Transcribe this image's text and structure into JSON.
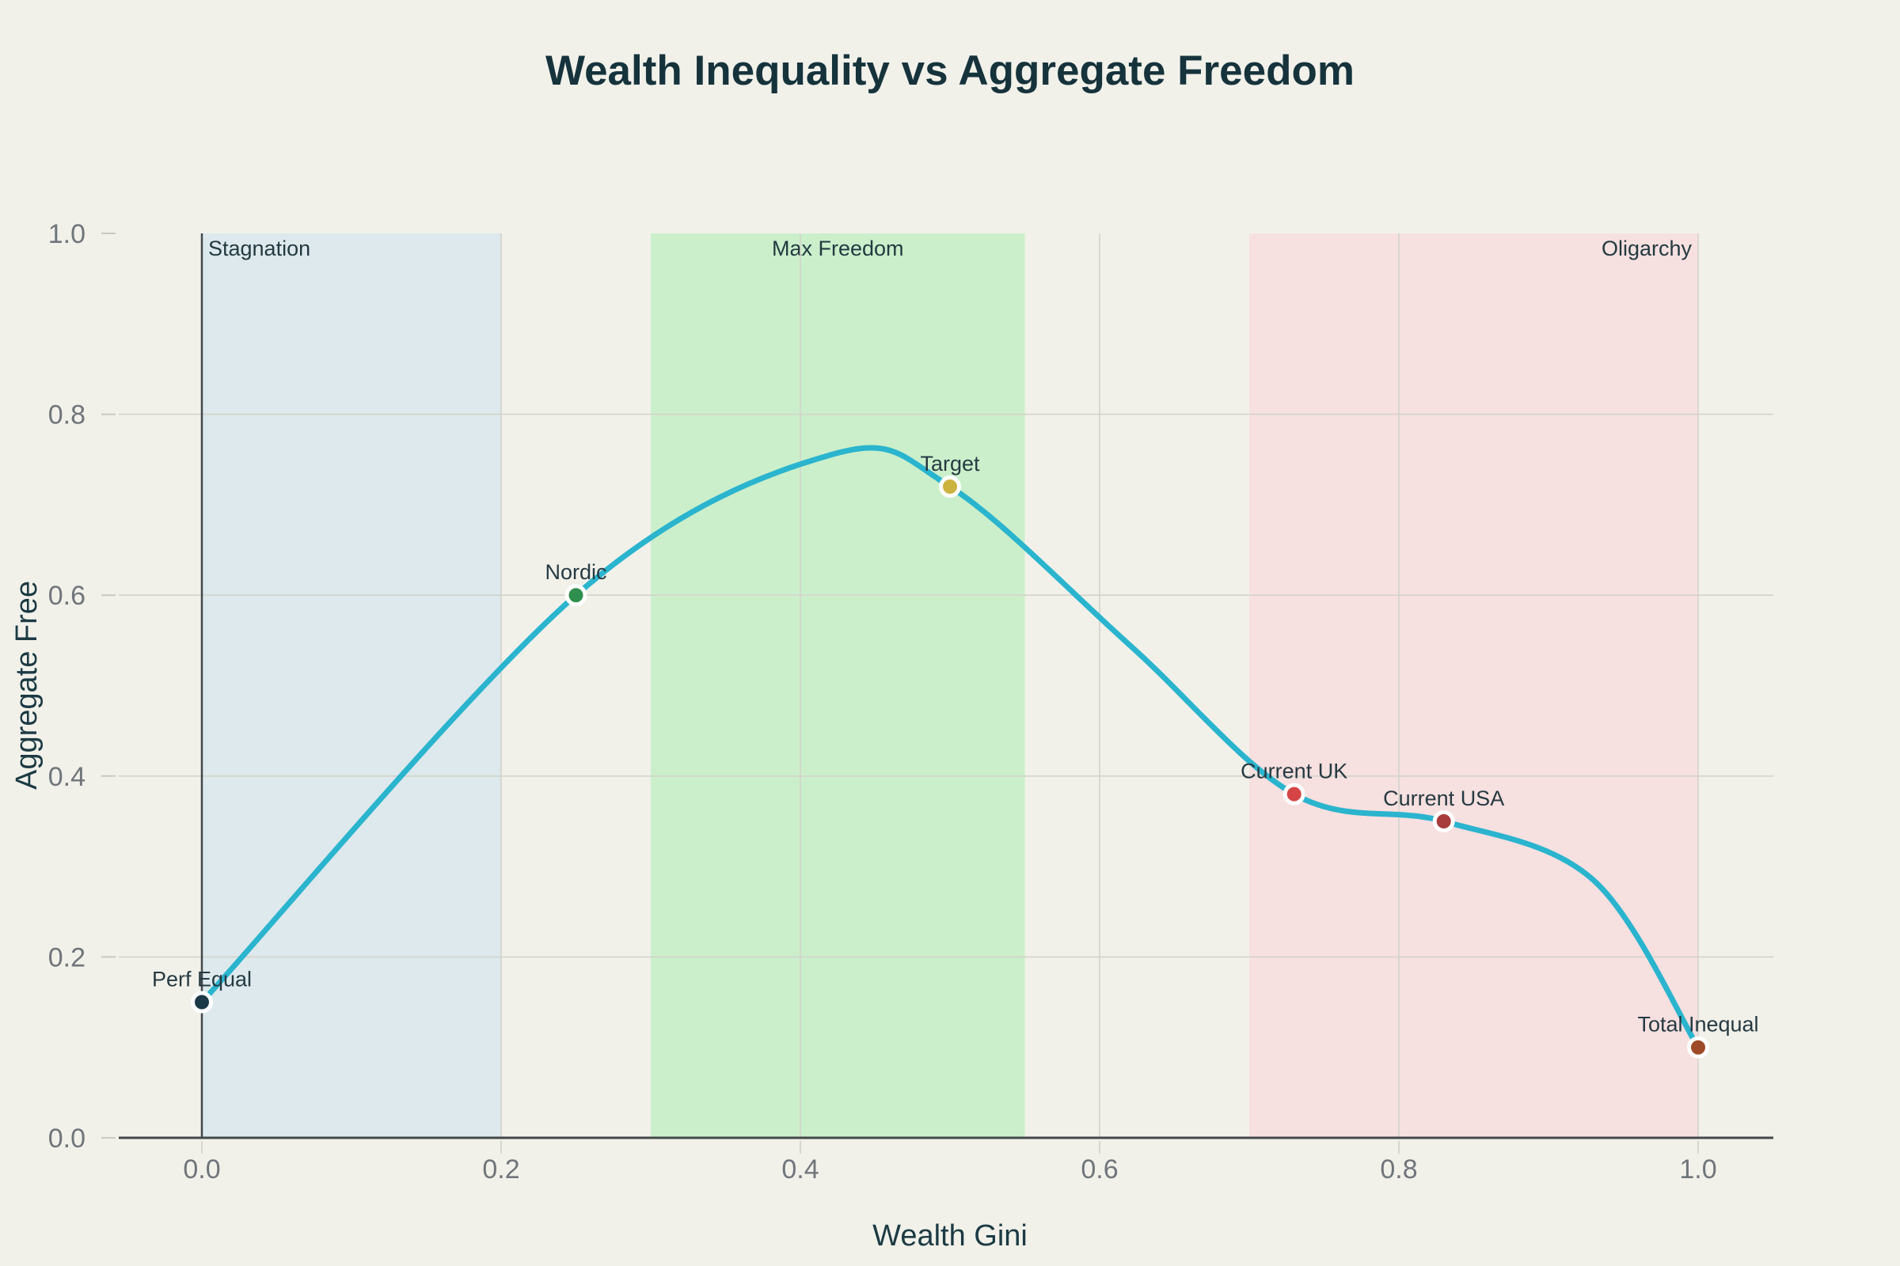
{
  "chart_data": {
    "type": "line",
    "title": "Wealth Inequality vs Aggregate Freedom",
    "xlabel": "Wealth Gini",
    "ylabel": "Aggregate Free",
    "xlim": [
      -0.07,
      1.05
    ],
    "ylim": [
      0.0,
      1.0
    ],
    "grid": true,
    "x_ticks": [
      {
        "value": 0.0,
        "label": "0.0"
      },
      {
        "value": 0.2,
        "label": "0.2"
      },
      {
        "value": 0.4,
        "label": "0.4"
      },
      {
        "value": 0.6,
        "label": "0.6"
      },
      {
        "value": 0.8,
        "label": "0.8"
      },
      {
        "value": 1.0,
        "label": "1.0"
      }
    ],
    "y_ticks": [
      {
        "value": 0.0,
        "label": "0.0"
      },
      {
        "value": 0.2,
        "label": "0.2"
      },
      {
        "value": 0.4,
        "label": "0.4"
      },
      {
        "value": 0.6,
        "label": "0.6"
      },
      {
        "value": 0.8,
        "label": "0.8"
      },
      {
        "value": 1.0,
        "label": "1.0"
      }
    ],
    "curve": {
      "name": "freedom-curve",
      "color": "#2ab4ce",
      "x": [
        0.0,
        0.25,
        0.42,
        0.5,
        0.62,
        0.73,
        0.83,
        0.93,
        1.0
      ],
      "y": [
        0.15,
        0.6,
        0.755,
        0.72,
        0.545,
        0.38,
        0.35,
        0.285,
        0.1
      ]
    },
    "points": [
      {
        "label": "Perf Equal",
        "x": 0.0,
        "y": 0.15,
        "color": "#1b3947"
      },
      {
        "label": "Nordic",
        "x": 0.25,
        "y": 0.6,
        "color": "#2f8f4e"
      },
      {
        "label": "Target",
        "x": 0.5,
        "y": 0.72,
        "color": "#ccb23e"
      },
      {
        "label": "Current UK",
        "x": 0.73,
        "y": 0.38,
        "color": "#d64545"
      },
      {
        "label": "Current USA",
        "x": 0.83,
        "y": 0.35,
        "color": "#a83c3c"
      },
      {
        "label": "Total Inequal",
        "x": 1.0,
        "y": 0.1,
        "color": "#9e4a28"
      }
    ],
    "regions": [
      {
        "label": "Stagnation",
        "x0": 0.0,
        "x1": 0.2,
        "color": "#dde9ec",
        "align": "left"
      },
      {
        "label": "Max Freedom",
        "x0": 0.3,
        "x1": 0.55,
        "color": "#cbefcb",
        "align": "center"
      },
      {
        "label": "Oligarchy",
        "x0": 0.7,
        "x1": 1.0,
        "color": "#f7e0e0",
        "align": "right"
      }
    ],
    "colors": {
      "background": "#f1f1ea",
      "curve": "#2ab4ce",
      "axis_line": "#43484b",
      "gridline": "#d3d3cb",
      "tick_text": "#6f757a",
      "title_text": "#16333c"
    }
  }
}
